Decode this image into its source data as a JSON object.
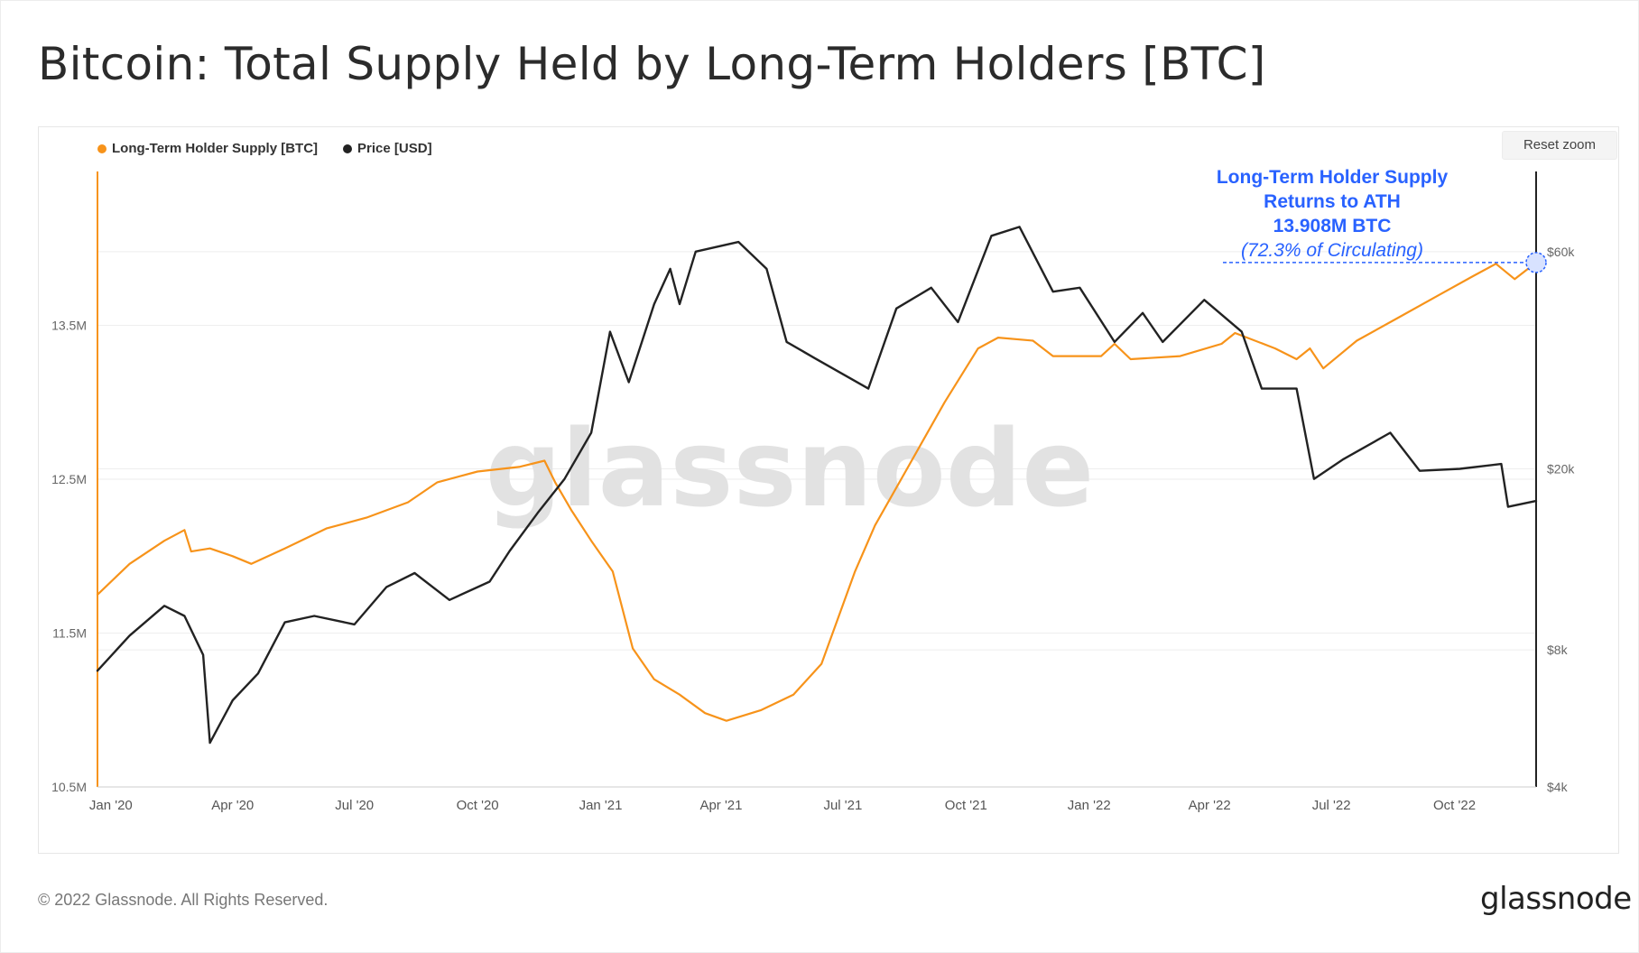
{
  "title": "Bitcoin: Total Supply Held by Long-Term Holders [BTC]",
  "reset_zoom_label": "Reset zoom",
  "footer": {
    "copyright": "© 2022 Glassnode. All Rights Reserved.",
    "logo": "glassnode"
  },
  "watermark": "glassnode",
  "colors": {
    "lth": "#F7931A",
    "price": "#222222",
    "annotation": "#2962FF",
    "grid": "#eeeeee"
  },
  "chart_data": {
    "type": "line",
    "legend_placement": "top-left",
    "grid": true,
    "left_axis": {
      "ticks": [
        "10.5M",
        "11.5M",
        "12.5M",
        "13.5M"
      ],
      "tick_values": [
        10.5,
        11.5,
        12.5,
        13.5
      ],
      "range": [
        10.5,
        14.5
      ],
      "unit": "M BTC"
    },
    "right_axis": {
      "scale": "log",
      "ticks": [
        "$4k",
        "$8k",
        "$20k",
        "$60k"
      ],
      "tick_values": [
        4000,
        8000,
        20000,
        60000
      ],
      "range": [
        4000,
        90000
      ]
    },
    "x_axis": {
      "ticks": [
        "Jan '20",
        "Apr '20",
        "Jul '20",
        "Oct '20",
        "Jan '21",
        "Apr '21",
        "Jul '21",
        "Oct '21",
        "Jan '22",
        "Apr '22",
        "Jul '22",
        "Oct '22"
      ],
      "tick_dates": [
        "2020-01-01",
        "2020-04-01",
        "2020-07-01",
        "2020-10-01",
        "2021-01-01",
        "2021-04-01",
        "2021-07-01",
        "2021-10-01",
        "2022-01-01",
        "2022-04-01",
        "2022-07-01",
        "2022-10-01"
      ],
      "range": [
        "2019-12-22",
        "2022-12-01"
      ]
    },
    "series": [
      {
        "name": "Long-Term Holder Supply [BTC]",
        "axis": "left",
        "color": "#F7931A",
        "points": [
          [
            "2019-12-22",
            11.75
          ],
          [
            "2020-01-15",
            11.95
          ],
          [
            "2020-02-10",
            12.1
          ],
          [
            "2020-02-25",
            12.17
          ],
          [
            "2020-03-01",
            12.03
          ],
          [
            "2020-03-15",
            12.05
          ],
          [
            "2020-04-01",
            12.0
          ],
          [
            "2020-04-15",
            11.95
          ],
          [
            "2020-05-10",
            12.05
          ],
          [
            "2020-06-10",
            12.18
          ],
          [
            "2020-07-10",
            12.25
          ],
          [
            "2020-08-10",
            12.35
          ],
          [
            "2020-09-01",
            12.48
          ],
          [
            "2020-10-01",
            12.55
          ],
          [
            "2020-11-01",
            12.58
          ],
          [
            "2020-11-20",
            12.62
          ],
          [
            "2020-11-28",
            12.48
          ],
          [
            "2020-12-10",
            12.3
          ],
          [
            "2020-12-25",
            12.1
          ],
          [
            "2021-01-10",
            11.9
          ],
          [
            "2021-01-25",
            11.4
          ],
          [
            "2021-02-10",
            11.2
          ],
          [
            "2021-03-01",
            11.1
          ],
          [
            "2021-03-20",
            10.98
          ],
          [
            "2021-04-05",
            10.93
          ],
          [
            "2021-05-01",
            11.0
          ],
          [
            "2021-05-25",
            11.1
          ],
          [
            "2021-06-15",
            11.3
          ],
          [
            "2021-07-10",
            11.9
          ],
          [
            "2021-07-25",
            12.2
          ],
          [
            "2021-08-20",
            12.6
          ],
          [
            "2021-09-15",
            13.0
          ],
          [
            "2021-10-10",
            13.35
          ],
          [
            "2021-10-25",
            13.42
          ],
          [
            "2021-11-20",
            13.4
          ],
          [
            "2021-12-05",
            13.3
          ],
          [
            "2022-01-10",
            13.3
          ],
          [
            "2022-01-20",
            13.38
          ],
          [
            "2022-02-01",
            13.28
          ],
          [
            "2022-03-10",
            13.3
          ],
          [
            "2022-04-10",
            13.38
          ],
          [
            "2022-04-20",
            13.45
          ],
          [
            "2022-05-20",
            13.35
          ],
          [
            "2022-06-05",
            13.28
          ],
          [
            "2022-06-15",
            13.35
          ],
          [
            "2022-06-25",
            13.22
          ],
          [
            "2022-07-20",
            13.4
          ],
          [
            "2022-08-20",
            13.55
          ],
          [
            "2022-09-20",
            13.7
          ],
          [
            "2022-10-15",
            13.82
          ],
          [
            "2022-11-01",
            13.9
          ],
          [
            "2022-11-15",
            13.8
          ],
          [
            "2022-12-01",
            13.908
          ]
        ]
      },
      {
        "name": "Price [USD]",
        "axis": "right",
        "color": "#222222",
        "points": [
          [
            "2019-12-22",
            7200
          ],
          [
            "2020-01-15",
            8600
          ],
          [
            "2020-02-10",
            10000
          ],
          [
            "2020-02-25",
            9500
          ],
          [
            "2020-03-10",
            7800
          ],
          [
            "2020-03-15",
            5000
          ],
          [
            "2020-04-01",
            6200
          ],
          [
            "2020-04-20",
            7100
          ],
          [
            "2020-05-10",
            9200
          ],
          [
            "2020-06-01",
            9500
          ],
          [
            "2020-07-01",
            9100
          ],
          [
            "2020-07-25",
            11000
          ],
          [
            "2020-08-15",
            11800
          ],
          [
            "2020-09-10",
            10300
          ],
          [
            "2020-10-10",
            11300
          ],
          [
            "2020-10-25",
            13200
          ],
          [
            "2020-11-15",
            16000
          ],
          [
            "2020-12-05",
            19000
          ],
          [
            "2020-12-25",
            24000
          ],
          [
            "2021-01-08",
            40000
          ],
          [
            "2021-01-22",
            31000
          ],
          [
            "2021-02-10",
            46000
          ],
          [
            "2021-02-22",
            55000
          ],
          [
            "2021-03-01",
            46000
          ],
          [
            "2021-03-13",
            60000
          ],
          [
            "2021-04-14",
            63000
          ],
          [
            "2021-05-05",
            55000
          ],
          [
            "2021-05-20",
            38000
          ],
          [
            "2021-06-10",
            35000
          ],
          [
            "2021-07-20",
            30000
          ],
          [
            "2021-08-10",
            45000
          ],
          [
            "2021-09-05",
            50000
          ],
          [
            "2021-09-25",
            42000
          ],
          [
            "2021-10-20",
            65000
          ],
          [
            "2021-11-10",
            68000
          ],
          [
            "2021-12-05",
            49000
          ],
          [
            "2021-12-25",
            50000
          ],
          [
            "2022-01-20",
            38000
          ],
          [
            "2022-02-10",
            44000
          ],
          [
            "2022-02-25",
            38000
          ],
          [
            "2022-03-28",
            47000
          ],
          [
            "2022-04-25",
            40000
          ],
          [
            "2022-05-10",
            30000
          ],
          [
            "2022-06-05",
            30000
          ],
          [
            "2022-06-18",
            19000
          ],
          [
            "2022-07-10",
            21000
          ],
          [
            "2022-08-14",
            24000
          ],
          [
            "2022-09-05",
            19800
          ],
          [
            "2022-10-05",
            20000
          ],
          [
            "2022-11-05",
            20500
          ],
          [
            "2022-11-10",
            16500
          ],
          [
            "2022-12-01",
            17000
          ]
        ]
      }
    ],
    "annotation": {
      "lines": [
        "Long-Term Holder Supply",
        "Returns to ATH",
        "13.908M BTC",
        "(72.3% of Circulating)"
      ],
      "value": 13.908,
      "date": "2022-12-01"
    }
  }
}
